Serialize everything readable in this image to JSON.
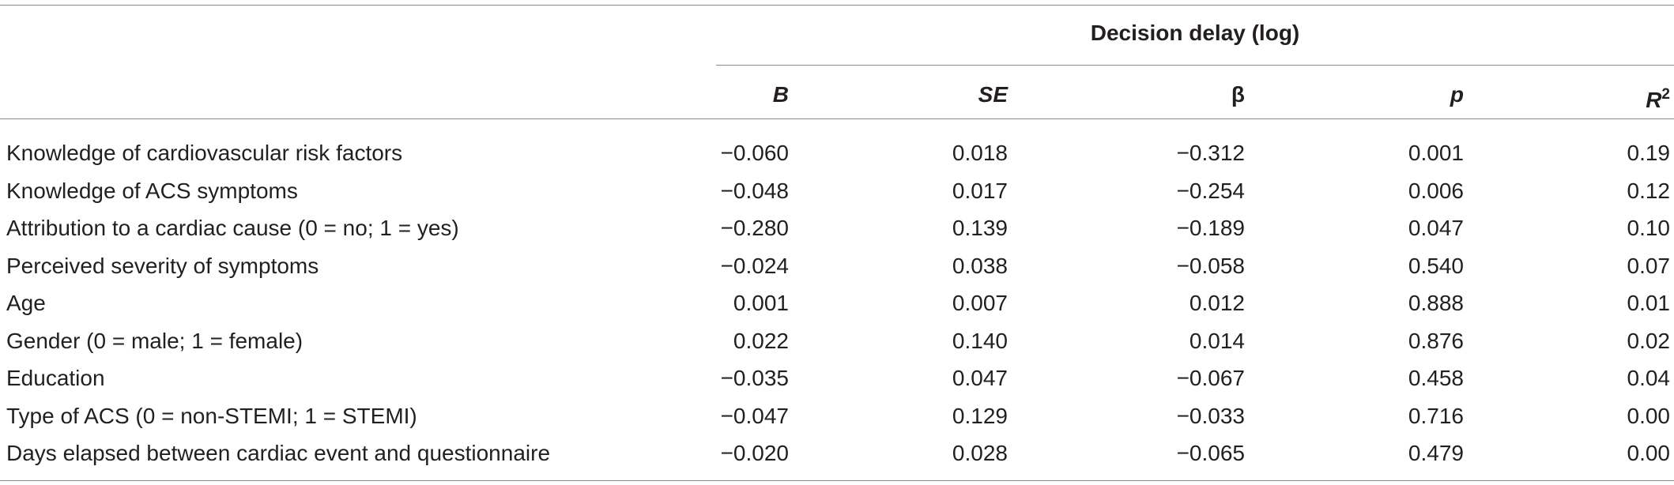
{
  "table": {
    "group_header": "Decision delay (log)",
    "columns": {
      "b": "B",
      "se": "SE",
      "beta": "β",
      "p": "p",
      "r2_base": "R",
      "r2_sup": "2"
    },
    "rows": [
      {
        "label": "Knowledge of cardiovascular risk factors",
        "b": "−0.060",
        "se": "0.018",
        "beta": "−0.312",
        "p": "0.001",
        "r2": "0.19"
      },
      {
        "label": "Knowledge of ACS symptoms",
        "b": "−0.048",
        "se": "0.017",
        "beta": "−0.254",
        "p": "0.006",
        "r2": "0.12"
      },
      {
        "label": "Attribution to a cardiac cause (0 = no; 1 = yes)",
        "b": "−0.280",
        "se": "0.139",
        "beta": "−0.189",
        "p": "0.047",
        "r2": "0.10"
      },
      {
        "label": "Perceived severity of symptoms",
        "b": "−0.024",
        "se": "0.038",
        "beta": "−0.058",
        "p": "0.540",
        "r2": "0.07"
      },
      {
        "label": "Age",
        "b": "0.001",
        "se": "0.007",
        "beta": "0.012",
        "p": "0.888",
        "r2": "0.01"
      },
      {
        "label": "Gender (0 = male; 1 = female)",
        "b": "0.022",
        "se": "0.140",
        "beta": "0.014",
        "p": "0.876",
        "r2": "0.02"
      },
      {
        "label": "Education",
        "b": "−0.035",
        "se": "0.047",
        "beta": "−0.067",
        "p": "0.458",
        "r2": "0.04"
      },
      {
        "label": "Type of ACS (0 = non-STEMI; 1 = STEMI)",
        "b": "−0.047",
        "se": "0.129",
        "beta": "−0.033",
        "p": "0.716",
        "r2": "0.00"
      },
      {
        "label": "Days elapsed between cardiac event and questionnaire",
        "b": "−0.020",
        "se": "0.028",
        "beta": "−0.065",
        "p": "0.479",
        "r2": "0.00"
      }
    ]
  }
}
